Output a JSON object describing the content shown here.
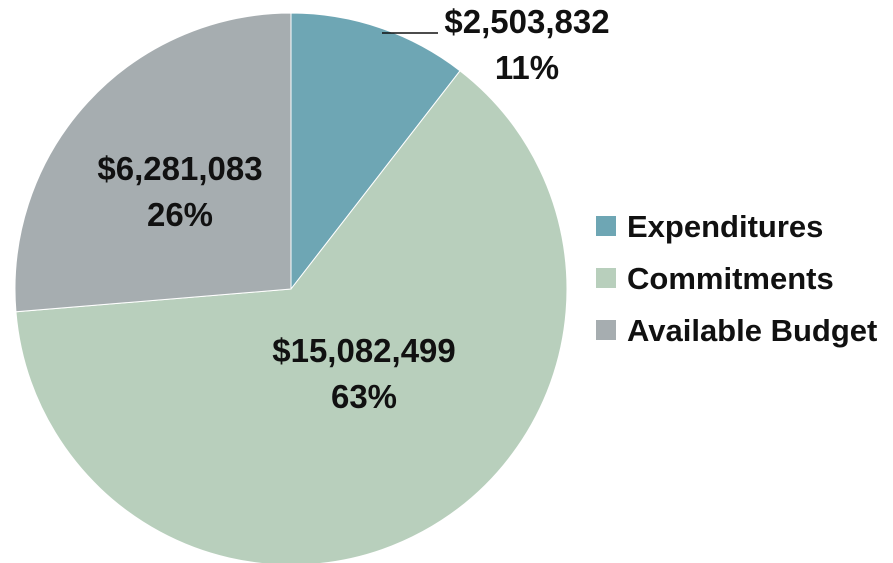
{
  "chart_data": {
    "type": "pie",
    "slices": [
      {
        "name": "Expenditures",
        "value": 2503832,
        "value_label": "$2,503,832",
        "percent_label": "11%",
        "color": "#6ea6b4"
      },
      {
        "name": "Commitments",
        "value": 15082499,
        "value_label": "$15,082,499",
        "percent_label": "63%",
        "color": "#b8cfbc"
      },
      {
        "name": "Available Budget",
        "value": 6281083,
        "value_label": "$6,281,083",
        "percent_label": "26%",
        "color": "#a6adb0"
      }
    ],
    "legend_position": "right",
    "start_angle": "12 o'clock",
    "direction": "clockwise"
  }
}
